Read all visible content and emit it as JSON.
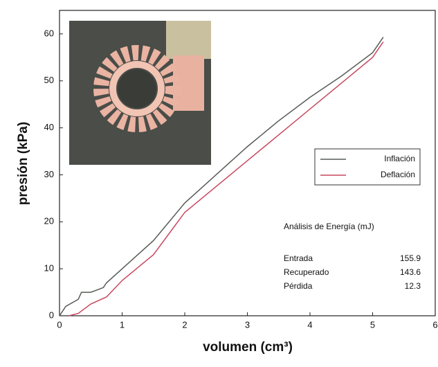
{
  "chart_data": {
    "type": "line",
    "x_label": "volumen (cm³)",
    "y_label": "presión (kPa)",
    "xlim": [
      0,
      6
    ],
    "xticks": [
      0,
      1,
      2,
      3,
      4,
      5,
      6
    ],
    "ylim": [
      0,
      65
    ],
    "yticks": [
      0,
      10,
      20,
      30,
      40,
      50,
      60
    ],
    "legend_position": "right",
    "series": [
      {
        "name": "Inflación",
        "color": "#555b55",
        "x": [
          0,
          0.1,
          0.3,
          0.35,
          0.5,
          0.7,
          0.75,
          1,
          1.5,
          2,
          2.5,
          3,
          3.5,
          4,
          4.5,
          5,
          5.17
        ],
        "values": [
          0,
          2,
          3.5,
          5,
          5,
          6,
          7,
          10,
          16,
          24,
          30,
          36,
          41.5,
          46.5,
          51,
          56,
          59.3
        ]
      },
      {
        "name": "Deflación",
        "color": "#c8475f",
        "x": [
          0.15,
          0.3,
          0.5,
          0.75,
          1,
          1.5,
          2,
          2.5,
          3,
          3.5,
          4,
          4.5,
          5,
          5.17
        ],
        "values": [
          0,
          0.5,
          2.5,
          4,
          7.5,
          13,
          22,
          27.5,
          33,
          38.5,
          44,
          49.5,
          55,
          58.3
        ]
      }
    ],
    "energy": {
      "title": "Análisis de Energía (mJ)",
      "rows": [
        {
          "label": "Entrada",
          "value": 155.9
        },
        {
          "label": "Recuperado",
          "value": 143.6
        },
        {
          "label": "Pérdida",
          "value": 12.3
        }
      ]
    }
  }
}
